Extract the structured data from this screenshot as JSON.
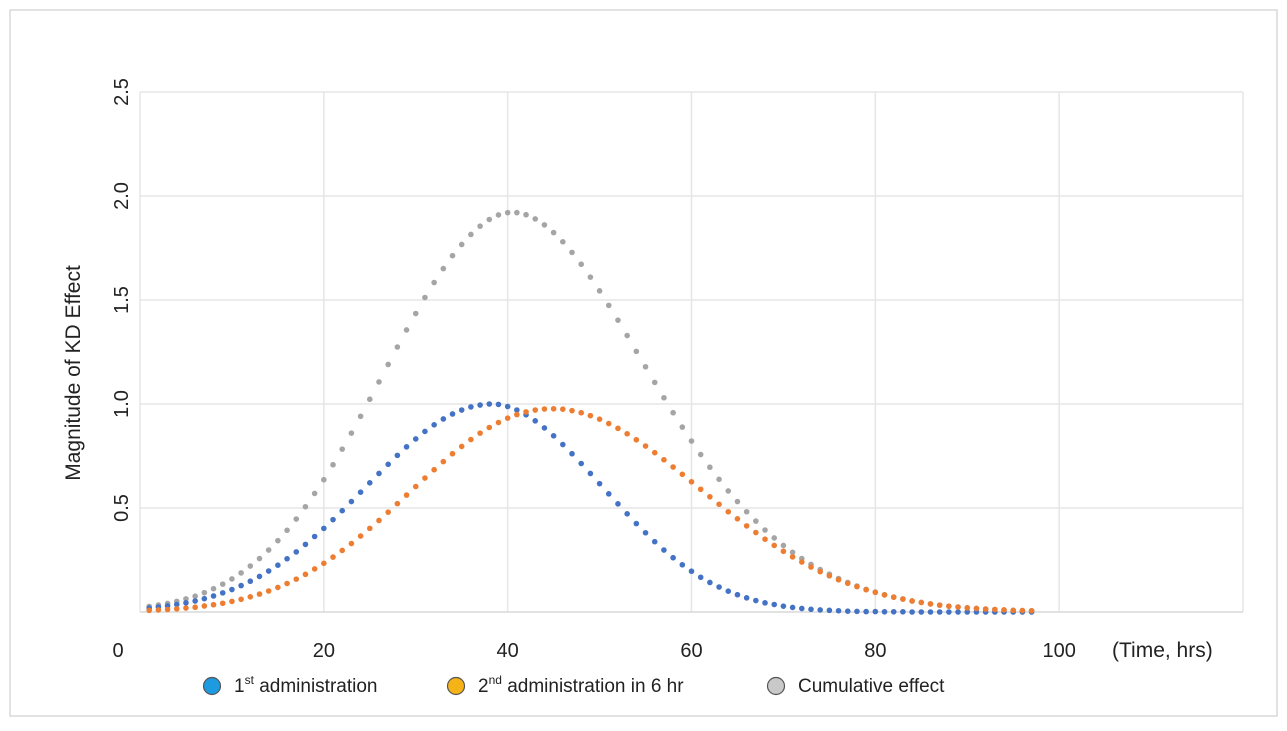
{
  "chart_data": {
    "type": "scatter",
    "title": "",
    "xlabel": "(Time, hrs)",
    "ylabel": "Magnitude of KD Effect",
    "xlim": [
      0,
      120
    ],
    "ylim": [
      0,
      2.5
    ],
    "x_ticks": [
      0,
      20,
      40,
      60,
      80,
      100
    ],
    "x_tick_labels": [
      "0",
      "20",
      "40",
      "60",
      "80",
      "100"
    ],
    "y_ticks": [
      0.5,
      1.0,
      1.5,
      2.0,
      2.5
    ],
    "y_tick_labels": [
      "0.5",
      "1.0",
      "1.5",
      "2.0",
      "2.5"
    ],
    "grid": true,
    "legend_position": "bottom",
    "x": [
      1,
      2,
      3,
      4,
      5,
      6,
      7,
      8,
      9,
      10,
      11,
      12,
      13,
      14,
      15,
      16,
      17,
      18,
      19,
      20,
      21,
      22,
      23,
      24,
      25,
      26,
      27,
      28,
      29,
      30,
      31,
      32,
      33,
      34,
      35,
      36,
      37,
      38,
      39,
      40,
      41,
      42,
      43,
      44,
      45,
      46,
      47,
      48,
      49,
      50,
      51,
      52,
      53,
      54,
      55,
      56,
      57,
      58,
      59,
      60,
      61,
      62,
      63,
      64,
      65,
      66,
      67,
      68,
      69,
      70,
      71,
      72,
      73,
      74,
      75,
      76,
      77,
      78,
      79,
      80,
      81,
      82,
      83,
      84,
      85,
      86,
      87,
      88,
      89,
      90,
      91,
      92,
      93,
      94,
      95,
      96,
      97
    ],
    "series": [
      {
        "name": "1st administration",
        "color": "#4472c4",
        "values": [
          0.019,
          0.024,
          0.029,
          0.036,
          0.044,
          0.053,
          0.064,
          0.077,
          0.092,
          0.108,
          0.127,
          0.148,
          0.171,
          0.197,
          0.225,
          0.256,
          0.289,
          0.325,
          0.363,
          0.402,
          0.444,
          0.487,
          0.531,
          0.576,
          0.621,
          0.666,
          0.71,
          0.753,
          0.794,
          0.832,
          0.868,
          0.9,
          0.928,
          0.952,
          0.971,
          0.986,
          0.995,
          1.0,
          0.998,
          0.988,
          0.971,
          0.948,
          0.919,
          0.885,
          0.847,
          0.805,
          0.761,
          0.714,
          0.666,
          0.617,
          0.568,
          0.52,
          0.472,
          0.425,
          0.381,
          0.338,
          0.298,
          0.261,
          0.227,
          0.196,
          0.167,
          0.142,
          0.12,
          0.1,
          0.083,
          0.068,
          0.055,
          0.044,
          0.036,
          0.028,
          0.022,
          0.017,
          0.013,
          0.01,
          0.008,
          0.006,
          0.004,
          0.003,
          0.002,
          0.002,
          0.001,
          0.001,
          0.001,
          0.0,
          0.0,
          0.0,
          0.0,
          0.0,
          0.0,
          0.0,
          0.0,
          0.0,
          0.0,
          0.0,
          0.0,
          0.0,
          0.0
        ]
      },
      {
        "name": "2nd administration in 6 hr",
        "color": "#ed7d31",
        "values": [
          0.008,
          0.01,
          0.012,
          0.015,
          0.019,
          0.023,
          0.029,
          0.035,
          0.042,
          0.051,
          0.061,
          0.073,
          0.086,
          0.101,
          0.118,
          0.137,
          0.158,
          0.181,
          0.207,
          0.234,
          0.264,
          0.296,
          0.329,
          0.365,
          0.402,
          0.44,
          0.48,
          0.521,
          0.562,
          0.603,
          0.644,
          0.684,
          0.723,
          0.761,
          0.796,
          0.829,
          0.86,
          0.887,
          0.911,
          0.932,
          0.949,
          0.962,
          0.971,
          0.976,
          0.977,
          0.975,
          0.968,
          0.958,
          0.944,
          0.927,
          0.906,
          0.883,
          0.857,
          0.828,
          0.798,
          0.766,
          0.732,
          0.697,
          0.662,
          0.626,
          0.59,
          0.554,
          0.518,
          0.482,
          0.448,
          0.414,
          0.382,
          0.35,
          0.32,
          0.292,
          0.265,
          0.24,
          0.216,
          0.194,
          0.174,
          0.155,
          0.138,
          0.122,
          0.107,
          0.094,
          0.082,
          0.071,
          0.062,
          0.053,
          0.046,
          0.039,
          0.033,
          0.028,
          0.024,
          0.02,
          0.017,
          0.014,
          0.012,
          0.01,
          0.008,
          0.007,
          0.006
        ]
      },
      {
        "name": "Cumulative effect",
        "color": "#a5a5a5",
        "values": [
          0.027,
          0.034,
          0.041,
          0.051,
          0.063,
          0.076,
          0.093,
          0.112,
          0.134,
          0.159,
          0.188,
          0.221,
          0.257,
          0.298,
          0.343,
          0.393,
          0.447,
          0.506,
          0.57,
          0.636,
          0.708,
          0.783,
          0.86,
          0.941,
          1.023,
          1.106,
          1.19,
          1.274,
          1.356,
          1.435,
          1.512,
          1.584,
          1.651,
          1.713,
          1.767,
          1.815,
          1.855,
          1.887,
          1.909,
          1.92,
          1.92,
          1.91,
          1.89,
          1.861,
          1.824,
          1.78,
          1.729,
          1.672,
          1.61,
          1.544,
          1.474,
          1.403,
          1.329,
          1.253,
          1.179,
          1.104,
          1.03,
          0.958,
          0.889,
          0.822,
          0.757,
          0.696,
          0.638,
          0.582,
          0.531,
          0.482,
          0.437,
          0.394,
          0.356,
          0.32,
          0.287,
          0.257,
          0.229,
          0.204,
          0.182,
          0.161,
          0.142,
          0.125,
          0.109,
          0.096,
          0.083,
          0.072,
          0.063,
          0.053,
          0.046,
          0.039,
          0.033,
          0.028,
          0.024,
          0.02,
          0.017,
          0.014,
          0.012,
          0.01,
          0.008,
          0.007,
          0.006
        ]
      }
    ],
    "legend": [
      {
        "base": "1",
        "sup": "st",
        "rest": " administration",
        "color": "#1e9be0"
      },
      {
        "base": "2",
        "sup": "nd",
        "rest": " administration in 6 hr",
        "color": "#f5b318"
      },
      {
        "base": "",
        "sup": "",
        "rest": "Cumulative effect",
        "color": "#c9c9c9"
      }
    ]
  }
}
